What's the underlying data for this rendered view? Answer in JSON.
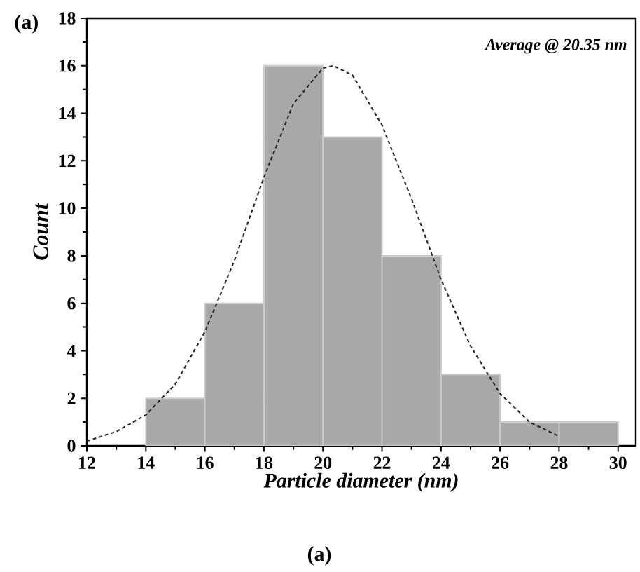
{
  "chart_data": {
    "type": "histogram",
    "xlabel": "Particle diameter (nm)",
    "ylabel": "Count",
    "bins": [
      14,
      16,
      18,
      20,
      22,
      24,
      26,
      28,
      30
    ],
    "values": [
      2,
      6,
      16,
      13,
      8,
      3,
      1,
      1
    ],
    "color": "#a8a8a8",
    "series": [
      {
        "type": "line",
        "color": "#2a2a2a",
        "line_style": "dashed",
        "x": [
          12,
          13,
          14,
          15,
          16,
          17,
          18,
          19,
          20,
          20.35,
          21,
          22,
          23,
          24,
          25,
          26,
          27,
          28
        ],
        "values": [
          0.2,
          0.6,
          1.3,
          2.6,
          4.8,
          7.8,
          11.3,
          14.4,
          15.9,
          16,
          15.6,
          13.5,
          10.4,
          7.0,
          4.2,
          2.2,
          1.0,
          0.4
        ]
      }
    ],
    "xlim": [
      12,
      30.6
    ],
    "ylim": [
      0,
      18
    ],
    "xticks": [
      12,
      14,
      16,
      18,
      20,
      22,
      24,
      26,
      28,
      30
    ],
    "yticks": [
      0,
      2,
      4,
      6,
      8,
      10,
      12,
      14,
      16,
      18
    ],
    "annotations": [
      "Average @ 20.35 nm",
      "(a)",
      "(a)"
    ]
  }
}
